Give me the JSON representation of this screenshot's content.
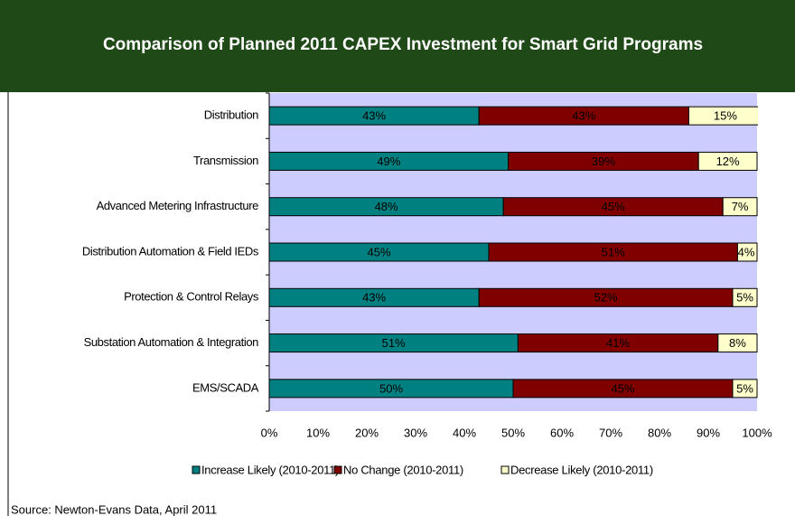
{
  "chart_data": {
    "type": "stacked_barh",
    "title": "Comparison of Planned 2011 CAPEX Investment for Smart Grid Programs",
    "categories": [
      "Distribution",
      "Transmission",
      "Advanced Metering Infrastructure",
      "Distribution Automation & Field IEDs",
      "Protection & Control Relays",
      "Substation Automation & Integration",
      "EMS/SCADA"
    ],
    "series": [
      {
        "name": "Increase Likely (2010-2011)",
        "color": "#008080",
        "values": [
          43,
          49,
          48,
          45,
          43,
          51,
          50
        ],
        "value_labels": [
          "43%",
          "49%",
          "48%",
          "45%",
          "43%",
          "51%",
          "50%"
        ]
      },
      {
        "name": "No Change (2010-2011)",
        "color": "#800000",
        "values": [
          43,
          39,
          45,
          51,
          52,
          41,
          45
        ],
        "value_labels": [
          "43%",
          "39%",
          "45%",
          "51%",
          "52%",
          "41%",
          "45%"
        ]
      },
      {
        "name": "Decrease Likely (2010-2011)",
        "color": "#ffffcc",
        "values": [
          15,
          12,
          7,
          4,
          5,
          8,
          5
        ],
        "value_labels": [
          "15%",
          "12%",
          "7%",
          "4%",
          "5%",
          "8%",
          "5%"
        ]
      }
    ],
    "xlim": [
      0,
      100
    ],
    "xticks": [
      {
        "value": 0,
        "label": "0%"
      },
      {
        "value": 10,
        "label": "10%"
      },
      {
        "value": 20,
        "label": "20%"
      },
      {
        "value": 30,
        "label": "30%"
      },
      {
        "value": 40,
        "label": "40%"
      },
      {
        "value": 50,
        "label": "50%"
      },
      {
        "value": 60,
        "label": "60%"
      },
      {
        "value": 70,
        "label": "70%"
      },
      {
        "value": 80,
        "label": "80%"
      },
      {
        "value": 90,
        "label": "90%"
      },
      {
        "value": 100,
        "label": "100%"
      }
    ],
    "plot_background": "#ccccff",
    "source": "Source: Newton-Evans Data, April 2011"
  }
}
